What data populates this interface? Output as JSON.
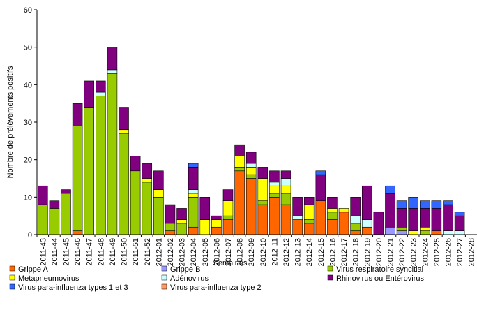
{
  "chart_data": {
    "type": "stacked_bar",
    "y_label": "Nombre de prélèvements positifs",
    "x_label": "Semaines",
    "categories": [
      "2011-43",
      "2011-44",
      "2011-45",
      "2011-46",
      "2011-47",
      "2011-48",
      "2011-49",
      "2011-50",
      "2011-51",
      "2011-52",
      "2012-01",
      "2012-02",
      "2012-03",
      "2012-04",
      "2012-05",
      "2012-06",
      "2012-07",
      "2012-08",
      "2012-09",
      "2012-10",
      "2012-11",
      "2012-12",
      "2012-13",
      "2012-14",
      "2012-15",
      "2012-16",
      "2012-17",
      "2012-18",
      "2012-19",
      "2012-20",
      "2012-21",
      "2012-22",
      "2012-23",
      "2012-24",
      "2012-25",
      "2012-26",
      "2012-27",
      "2012-28"
    ],
    "ylim": [
      0,
      60
    ],
    "yticks": [
      0,
      10,
      20,
      30,
      40,
      50,
      60
    ],
    "series": [
      {
        "name": "Grippe A",
        "color": "#ff6600",
        "values": [
          0,
          0,
          0,
          1,
          0,
          0,
          0,
          0,
          0,
          0,
          0,
          1,
          0,
          2,
          0,
          2,
          4,
          17,
          15,
          8,
          10,
          8,
          4,
          3,
          9,
          4,
          6,
          1,
          2,
          0,
          0,
          0,
          0,
          0,
          1,
          0,
          0,
          0
        ]
      },
      {
        "name": "Grippe B",
        "color": "#9999ff",
        "values": [
          0,
          0,
          0,
          0,
          0,
          0,
          0,
          0,
          0,
          0,
          0,
          0,
          0,
          0,
          0,
          0,
          0,
          0,
          0,
          0,
          0,
          0,
          0,
          0,
          0,
          0,
          0,
          0,
          0,
          0,
          2,
          1,
          0,
          0,
          0,
          0,
          0,
          0
        ]
      },
      {
        "name": "Virus respiratoire syncitial",
        "color": "#99cc00",
        "values": [
          8,
          7,
          11,
          28,
          34,
          37,
          43,
          27,
          17,
          14,
          10,
          2,
          3,
          8,
          0,
          0,
          1,
          1,
          1,
          1,
          1,
          3,
          0,
          1,
          0,
          2,
          0,
          2,
          0,
          0,
          0,
          1,
          0,
          1,
          0,
          0,
          0,
          0
        ]
      },
      {
        "name": "Metapneumovirus",
        "color": "#ffff00",
        "values": [
          0,
          0,
          0,
          0,
          0,
          0,
          0,
          1,
          0,
          1,
          2,
          0,
          1,
          1,
          4,
          2,
          4,
          3,
          2,
          6,
          2,
          2,
          0,
          4,
          0,
          1,
          1,
          0,
          0,
          0,
          0,
          0,
          1,
          1,
          0,
          0,
          0,
          0
        ]
      },
      {
        "name": "Adénovirus",
        "color": "#ccffff",
        "values": [
          0,
          0,
          0,
          0,
          0,
          1,
          1,
          0,
          0,
          0,
          0,
          0,
          0,
          1,
          0,
          0,
          0,
          0,
          1,
          0,
          1,
          2,
          1,
          0,
          0,
          0,
          0,
          2,
          2,
          0,
          0,
          0,
          0,
          0,
          0,
          1,
          1,
          0
        ]
      },
      {
        "name": "Rhinovirus ou Entérovirus",
        "color": "#800080",
        "values": [
          5,
          2,
          1,
          6,
          7,
          3,
          6,
          6,
          4,
          4,
          5,
          5,
          3,
          6,
          6,
          1,
          3,
          3,
          3,
          3,
          3,
          2,
          5,
          2,
          7,
          3,
          0,
          5,
          9,
          6,
          9,
          5,
          6,
          5,
          6,
          7,
          4,
          0
        ]
      },
      {
        "name": "Virus para-influenza types 1 et 3",
        "color": "#3366ff",
        "values": [
          0,
          0,
          0,
          0,
          0,
          0,
          0,
          0,
          0,
          0,
          0,
          0,
          0,
          1,
          0,
          0,
          0,
          0,
          0,
          0,
          0,
          0,
          0,
          0,
          1,
          0,
          0,
          0,
          0,
          0,
          2,
          2,
          3,
          2,
          2,
          1,
          1,
          0
        ]
      },
      {
        "name": "Virus para-influenza type 2",
        "color": "#ff9966",
        "values": [
          0,
          0,
          0,
          0,
          0,
          0,
          0,
          0,
          0,
          0,
          0,
          0,
          0,
          0,
          0,
          0,
          0,
          0,
          0,
          0,
          0,
          0,
          0,
          0,
          0,
          0,
          0,
          0,
          0,
          0,
          0,
          0,
          0,
          0,
          0,
          0,
          0,
          0
        ]
      }
    ]
  }
}
